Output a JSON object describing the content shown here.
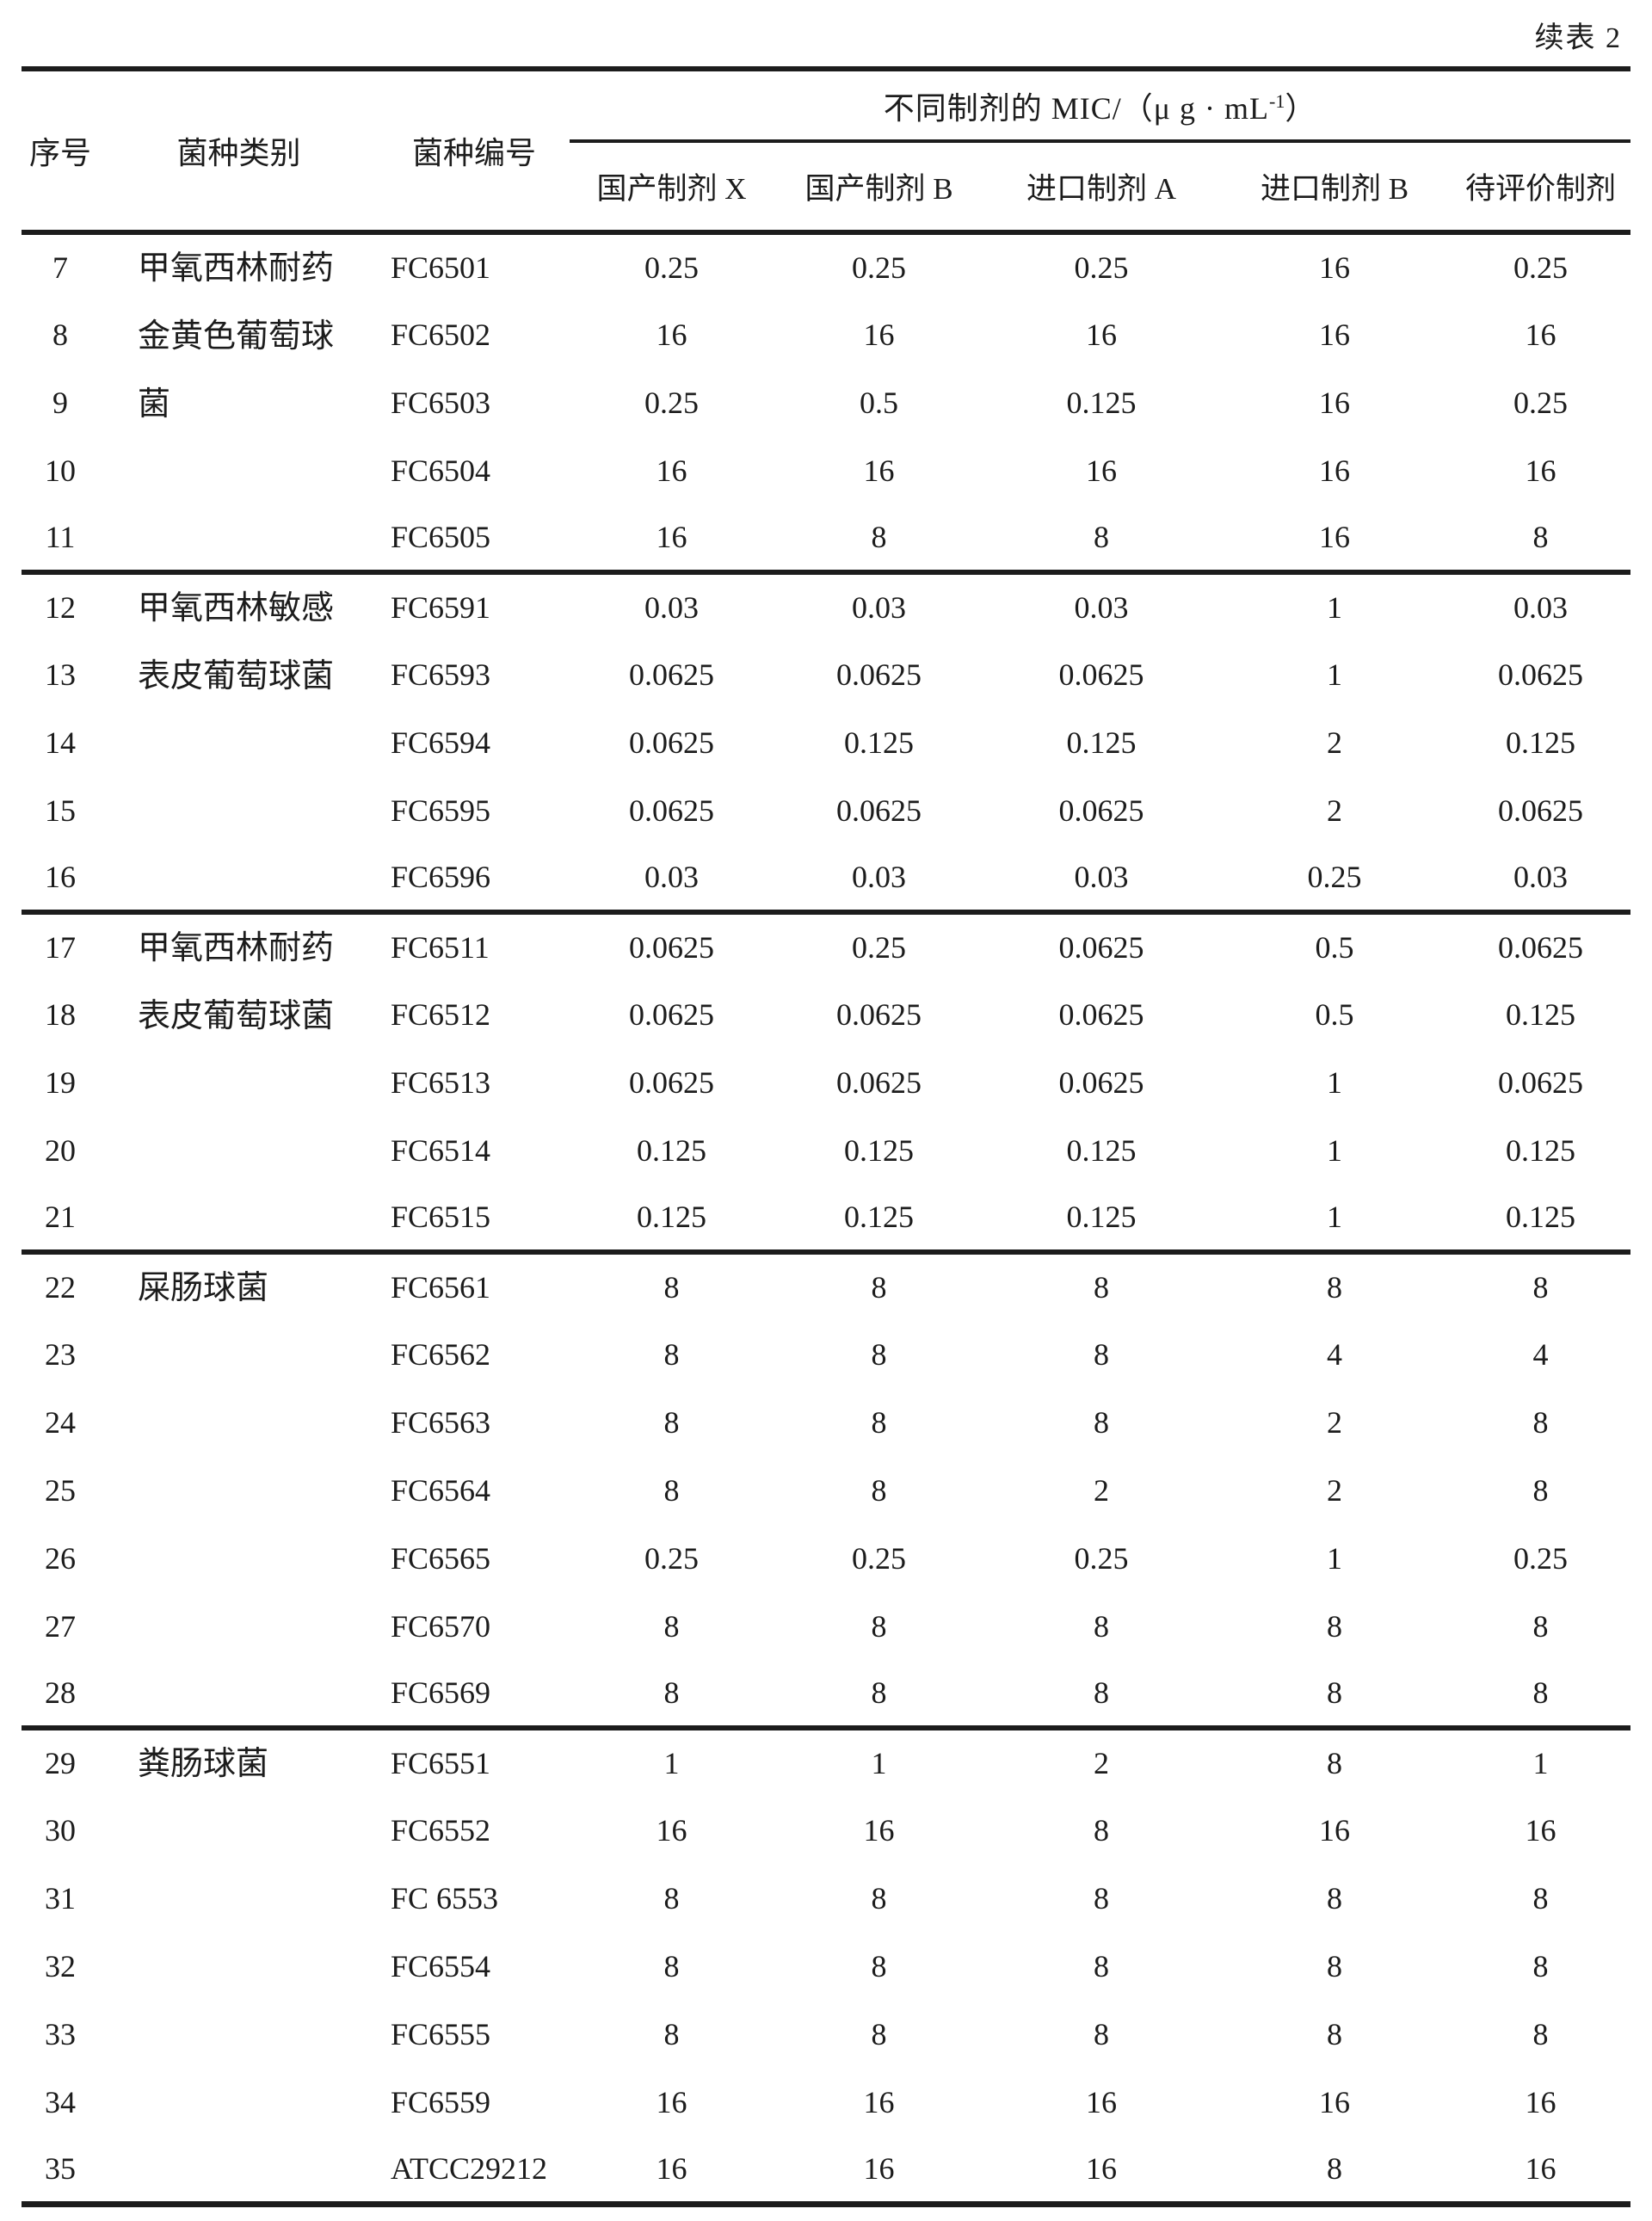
{
  "page": {
    "continuation_label": "续表 2"
  },
  "table": {
    "header": {
      "col_no": "序号",
      "col_category": "菌种类别",
      "col_strain": "菌种编号",
      "mic_group": {
        "prefix": "不同制剂的 MIC/（μ g · mL",
        "superscript": "-1",
        "suffix": "）"
      },
      "sub_columns": [
        "国产制剂 X",
        "国产制剂 B",
        "进口制剂 A",
        "进口制剂 B",
        "待评价制剂"
      ]
    },
    "sections": [
      {
        "category": "甲氧西林耐药金黄色葡萄球菌",
        "rows": [
          {
            "no": "7",
            "strain": "FC6501",
            "values": [
              "0.25",
              "0.25",
              "0.25",
              "16",
              "0.25"
            ]
          },
          {
            "no": "8",
            "strain": "FC6502",
            "values": [
              "16",
              "16",
              "16",
              "16",
              "16"
            ]
          },
          {
            "no": "9",
            "strain": "FC6503",
            "values": [
              "0.25",
              "0.5",
              "0.125",
              "16",
              "0.25"
            ]
          },
          {
            "no": "10",
            "strain": "FC6504",
            "values": [
              "16",
              "16",
              "16",
              "16",
              "16"
            ]
          },
          {
            "no": "11",
            "strain": "FC6505",
            "values": [
              "16",
              "8",
              "8",
              "16",
              "8"
            ]
          }
        ]
      },
      {
        "category": "甲氧西林敏感表皮葡萄球菌",
        "rows": [
          {
            "no": "12",
            "strain": "FC6591",
            "values": [
              "0.03",
              "0.03",
              "0.03",
              "1",
              "0.03"
            ]
          },
          {
            "no": "13",
            "strain": "FC6593",
            "values": [
              "0.0625",
              "0.0625",
              "0.0625",
              "1",
              "0.0625"
            ]
          },
          {
            "no": "14",
            "strain": "FC6594",
            "values": [
              "0.0625",
              "0.125",
              "0.125",
              "2",
              "0.125"
            ]
          },
          {
            "no": "15",
            "strain": "FC6595",
            "values": [
              "0.0625",
              "0.0625",
              "0.0625",
              "2",
              "0.0625"
            ]
          },
          {
            "no": "16",
            "strain": "FC6596",
            "values": [
              "0.03",
              "0.03",
              "0.03",
              "0.25",
              "0.03"
            ]
          }
        ]
      },
      {
        "category": "甲氧西林耐药表皮葡萄球菌",
        "rows": [
          {
            "no": "17",
            "strain": "FC6511",
            "values": [
              "0.0625",
              "0.25",
              "0.0625",
              "0.5",
              "0.0625"
            ]
          },
          {
            "no": "18",
            "strain": "FC6512",
            "values": [
              "0.0625",
              "0.0625",
              "0.0625",
              "0.5",
              "0.125"
            ]
          },
          {
            "no": "19",
            "strain": "FC6513",
            "values": [
              "0.0625",
              "0.0625",
              "0.0625",
              "1",
              "0.0625"
            ]
          },
          {
            "no": "20",
            "strain": "FC6514",
            "values": [
              "0.125",
              "0.125",
              "0.125",
              "1",
              "0.125"
            ]
          },
          {
            "no": "21",
            "strain": "FC6515",
            "values": [
              "0.125",
              "0.125",
              "0.125",
              "1",
              "0.125"
            ]
          }
        ]
      },
      {
        "category": "屎肠球菌",
        "rows": [
          {
            "no": "22",
            "strain": "FC6561",
            "values": [
              "8",
              "8",
              "8",
              "8",
              "8"
            ]
          },
          {
            "no": "23",
            "strain": "FC6562",
            "values": [
              "8",
              "8",
              "8",
              "4",
              "4"
            ]
          },
          {
            "no": "24",
            "strain": "FC6563",
            "values": [
              "8",
              "8",
              "8",
              "2",
              "8"
            ]
          },
          {
            "no": "25",
            "strain": "FC6564",
            "values": [
              "8",
              "8",
              "2",
              "2",
              "8"
            ]
          },
          {
            "no": "26",
            "strain": "FC6565",
            "values": [
              "0.25",
              "0.25",
              "0.25",
              "1",
              "0.25"
            ]
          },
          {
            "no": "27",
            "strain": "FC6570",
            "values": [
              "8",
              "8",
              "8",
              "8",
              "8"
            ]
          },
          {
            "no": "28",
            "strain": "FC6569",
            "values": [
              "8",
              "8",
              "8",
              "8",
              "8"
            ]
          }
        ]
      },
      {
        "category": "粪肠球菌",
        "rows": [
          {
            "no": "29",
            "strain": "FC6551",
            "values": [
              "1",
              "1",
              "2",
              "8",
              "1"
            ]
          },
          {
            "no": "30",
            "strain": "FC6552",
            "values": [
              "16",
              "16",
              "8",
              "16",
              "16"
            ]
          },
          {
            "no": "31",
            "strain": "FC 6553",
            "values": [
              "8",
              "8",
              "8",
              "8",
              "8"
            ]
          },
          {
            "no": "32",
            "strain": "FC6554",
            "values": [
              "8",
              "8",
              "8",
              "8",
              "8"
            ]
          },
          {
            "no": "33",
            "strain": "FC6555",
            "values": [
              "8",
              "8",
              "8",
              "8",
              "8"
            ]
          },
          {
            "no": "34",
            "strain": "FC6559",
            "values": [
              "16",
              "16",
              "16",
              "16",
              "16"
            ]
          },
          {
            "no": "35",
            "strain": "ATCC29212",
            "values": [
              "16",
              "16",
              "16",
              "8",
              "16"
            ]
          }
        ]
      }
    ]
  }
}
